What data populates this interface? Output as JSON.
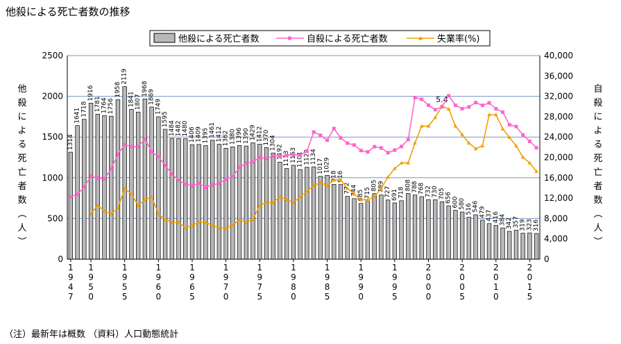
{
  "page": {
    "title": "他殺による死亡者数の推移",
    "footnote": "（注）最新年は概数 （資料）人口動態統計"
  },
  "colors": {
    "bar_fill": "#b8b8b8",
    "bar_stroke": "#000000",
    "suicide_line": "#ff66cc",
    "unemployment_line": "#f0a000",
    "grid": "#7a96c8"
  },
  "chart_data": {
    "type": "bar",
    "title": "他殺による死亡者数の推移",
    "x_tick_labels": [
      "1947",
      "1950",
      "1955",
      "1960",
      "1965",
      "1970",
      "1975",
      "1980",
      "1985",
      "1990",
      "1995",
      "2000",
      "2005",
      "2010",
      "2015"
    ],
    "left_axis": {
      "label": "他殺による死亡者数（人）",
      "range": [
        0,
        2500
      ],
      "ticks": [
        0,
        500,
        1000,
        1500,
        2000,
        2500
      ]
    },
    "right_axis": {
      "label": "自殺による死亡者数（人）",
      "range": [
        0,
        40000
      ],
      "ticks": [
        "0",
        "4,000",
        "8,000",
        "12,000",
        "16,000",
        "20,000",
        "24,000",
        "28,000",
        "32,000",
        "36,000",
        "40,000"
      ]
    },
    "legend": [
      "他殺による死亡者数",
      "自殺による死亡者数",
      "失業率(%)"
    ],
    "legend_placement": "top",
    "annotation": "5.4",
    "grid": true,
    "x": [
      1947,
      1948,
      1949,
      1950,
      1951,
      1952,
      1953,
      1954,
      1955,
      1956,
      1957,
      1958,
      1959,
      1960,
      1961,
      1962,
      1963,
      1964,
      1965,
      1966,
      1967,
      1968,
      1969,
      1970,
      1971,
      1972,
      1973,
      1974,
      1975,
      1976,
      1977,
      1978,
      1979,
      1980,
      1981,
      1982,
      1983,
      1984,
      1985,
      1986,
      1987,
      1988,
      1989,
      1990,
      1991,
      1992,
      1993,
      1994,
      1995,
      1996,
      1997,
      1998,
      1999,
      2000,
      2001,
      2002,
      2003,
      2004,
      2005,
      2006,
      2007,
      2008,
      2009,
      2010,
      2011,
      2012,
      2013,
      2014,
      2015,
      2016
    ],
    "series": [
      {
        "name": "他殺による死亡者数",
        "type": "bar",
        "axis": "left",
        "values": [
          1314,
          1641,
          1718,
          1916,
          1781,
          1764,
          1756,
          1958,
          2119,
          1841,
          1807,
          1968,
          1869,
          1749,
          1595,
          1484,
          1482,
          1480,
          1406,
          1409,
          1395,
          1461,
          1412,
          1362,
          1380,
          1396,
          1390,
          1429,
          1412,
          1370,
          1304,
          1192,
          1113,
          1153,
          1101,
          1129,
          1134,
          1017,
          1029,
          918,
          916,
          772,
          744,
          685,
          715,
          805,
          789,
          727,
          691,
          718,
          808,
          788,
          768,
          732,
          730,
          705,
          656,
          600,
          580,
          516,
          546,
          479,
          437,
          416,
          384,
          342,
          357,
          319,
          323,
          316
        ]
      },
      {
        "name": "自殺による死亡者数",
        "type": "line",
        "axis": "right",
        "values": [
          12262,
          12753,
          14201,
          16311,
          15906,
          15776,
          17731,
          20635,
          22477,
          22107,
          22136,
          23641,
          21090,
          20143,
          18446,
          16724,
          15490,
          14707,
          14444,
          14895,
          14121,
          14601,
          14844,
          15728,
          16239,
          18015,
          18859,
          19105,
          19975,
          19786,
          20269,
          20199,
          20427,
          20542,
          20434,
          21228,
          24985,
          24344,
          23383,
          25667,
          23831,
          22795,
          22436,
          21346,
          21084,
          22104,
          21851,
          20923,
          21420,
          22138,
          23494,
          31755,
          31413,
          30251,
          29375,
          29949,
          32109,
          30247,
          29553,
          29921,
          30777,
          30229,
          30707,
          29554,
          28896,
          26433,
          26063,
          24417,
          23152,
          21897
        ]
      },
      {
        "name": "失業率(%)",
        "type": "line",
        "axis": "right",
        "values": [
          null,
          null,
          null,
          1.6,
          1.9,
          1.7,
          1.6,
          1.8,
          2.5,
          2.3,
          1.9,
          2.1,
          2.2,
          1.6,
          1.4,
          1.3,
          1.3,
          1.1,
          1.2,
          1.3,
          1.3,
          1.2,
          1.1,
          1.1,
          1.2,
          1.4,
          1.3,
          1.4,
          1.9,
          2.0,
          2.0,
          2.2,
          2.1,
          2.0,
          2.2,
          2.4,
          2.6,
          2.7,
          2.6,
          2.8,
          2.8,
          2.5,
          2.3,
          2.1,
          2.1,
          2.2,
          2.5,
          2.9,
          3.2,
          3.4,
          3.4,
          4.1,
          4.7,
          4.7,
          5.0,
          5.4,
          5.3,
          4.7,
          4.4,
          4.1,
          3.9,
          4.0,
          5.1,
          5.1,
          4.6,
          4.3,
          4.0,
          3.6,
          3.4,
          3.1
        ]
      }
    ]
  }
}
